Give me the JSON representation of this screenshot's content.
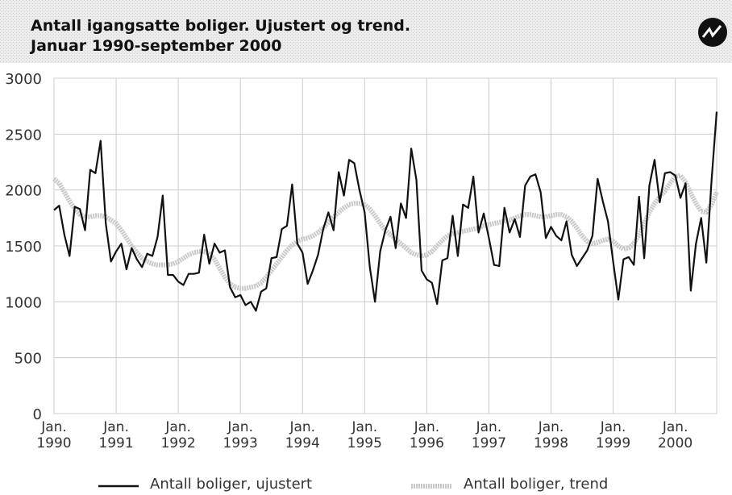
{
  "chart_data": {
    "type": "line",
    "title": "Antall igangsatte boliger. Ujustert og trend.",
    "subtitle": "Januar 1990-september 2000",
    "categories": [
      "Jan. 1990",
      null,
      null,
      null,
      null,
      null,
      null,
      null,
      null,
      null,
      null,
      null,
      "Jan. 1991",
      null,
      null,
      null,
      null,
      null,
      null,
      null,
      null,
      null,
      null,
      null,
      "Jan. 1992",
      null,
      null,
      null,
      null,
      null,
      null,
      null,
      null,
      null,
      null,
      null,
      "Jan. 1993",
      null,
      null,
      null,
      null,
      null,
      null,
      null,
      null,
      null,
      null,
      null,
      "Jan. 1994",
      null,
      null,
      null,
      null,
      null,
      null,
      null,
      null,
      null,
      null,
      null,
      "Jan. 1995",
      null,
      null,
      null,
      null,
      null,
      null,
      null,
      null,
      null,
      null,
      null,
      "Jan. 1996",
      null,
      null,
      null,
      null,
      null,
      null,
      null,
      null,
      null,
      null,
      null,
      "Jan. 1997",
      null,
      null,
      null,
      null,
      null,
      null,
      null,
      null,
      null,
      null,
      null,
      "Jan. 1998",
      null,
      null,
      null,
      null,
      null,
      null,
      null,
      null,
      null,
      null,
      null,
      "Jan. 1999",
      null,
      null,
      null,
      null,
      null,
      null,
      null,
      null,
      null,
      null,
      null,
      "Jan. 2000",
      null,
      null,
      null,
      null,
      null,
      null,
      null,
      null
    ],
    "series": [
      {
        "name": "Antall boliger, ujustert",
        "color": "#111111",
        "values": [
          1820,
          1860,
          1600,
          1410,
          1850,
          1830,
          1640,
          2180,
          2150,
          2440,
          1700,
          1360,
          1450,
          1520,
          1290,
          1480,
          1380,
          1310,
          1430,
          1410,
          1580,
          1950,
          1240,
          1240,
          1180,
          1150,
          1250,
          1250,
          1260,
          1600,
          1340,
          1520,
          1440,
          1460,
          1130,
          1040,
          1060,
          970,
          1000,
          920,
          1090,
          1120,
          1390,
          1400,
          1650,
          1680,
          2050,
          1520,
          1440,
          1160,
          1280,
          1420,
          1650,
          1800,
          1640,
          2160,
          1950,
          2270,
          2240,
          2000,
          1800,
          1310,
          1000,
          1450,
          1640,
          1760,
          1480,
          1880,
          1750,
          2370,
          2090,
          1280,
          1200,
          1170,
          980,
          1370,
          1390,
          1770,
          1410,
          1870,
          1840,
          2120,
          1620,
          1790,
          1570,
          1330,
          1320,
          1840,
          1620,
          1740,
          1580,
          2040,
          2120,
          2140,
          1980,
          1570,
          1670,
          1590,
          1550,
          1720,
          1420,
          1320,
          1390,
          1460,
          1590,
          2100,
          1900,
          1720,
          1360,
          1020,
          1380,
          1400,
          1330,
          1940,
          1390,
          2040,
          2270,
          1890,
          2150,
          2160,
          2130,
          1930,
          2060,
          1100,
          1520,
          1750,
          1350,
          2080,
          2700
        ]
      },
      {
        "name": "Antall boliger, trend",
        "color": "#c8c8c8",
        "values": [
          2100,
          2060,
          1980,
          1900,
          1830,
          1780,
          1760,
          1760,
          1770,
          1770,
          1760,
          1730,
          1700,
          1640,
          1570,
          1500,
          1440,
          1390,
          1360,
          1340,
          1330,
          1330,
          1330,
          1340,
          1360,
          1390,
          1420,
          1440,
          1450,
          1450,
          1430,
          1380,
          1300,
          1220,
          1160,
          1130,
          1120,
          1120,
          1130,
          1140,
          1170,
          1220,
          1280,
          1340,
          1400,
          1460,
          1510,
          1540,
          1560,
          1570,
          1590,
          1620,
          1660,
          1710,
          1760,
          1800,
          1840,
          1870,
          1880,
          1880,
          1870,
          1830,
          1770,
          1700,
          1640,
          1600,
          1560,
          1520,
          1480,
          1440,
          1420,
          1410,
          1420,
          1450,
          1500,
          1550,
          1590,
          1610,
          1620,
          1630,
          1640,
          1650,
          1660,
          1680,
          1690,
          1700,
          1710,
          1720,
          1730,
          1750,
          1770,
          1780,
          1780,
          1770,
          1760,
          1760,
          1770,
          1780,
          1780,
          1760,
          1720,
          1660,
          1590,
          1540,
          1520,
          1530,
          1550,
          1560,
          1540,
          1500,
          1470,
          1480,
          1520,
          1600,
          1700,
          1800,
          1880,
          1940,
          1990,
          2060,
          2120,
          2130,
          2070,
          1970,
          1880,
          1810,
          1800,
          1870,
          1980
        ]
      }
    ],
    "ylim": [
      0,
      3000
    ],
    "yticks": [
      0,
      500,
      1000,
      1500,
      2000,
      2500,
      3000
    ],
    "grid": true
  }
}
